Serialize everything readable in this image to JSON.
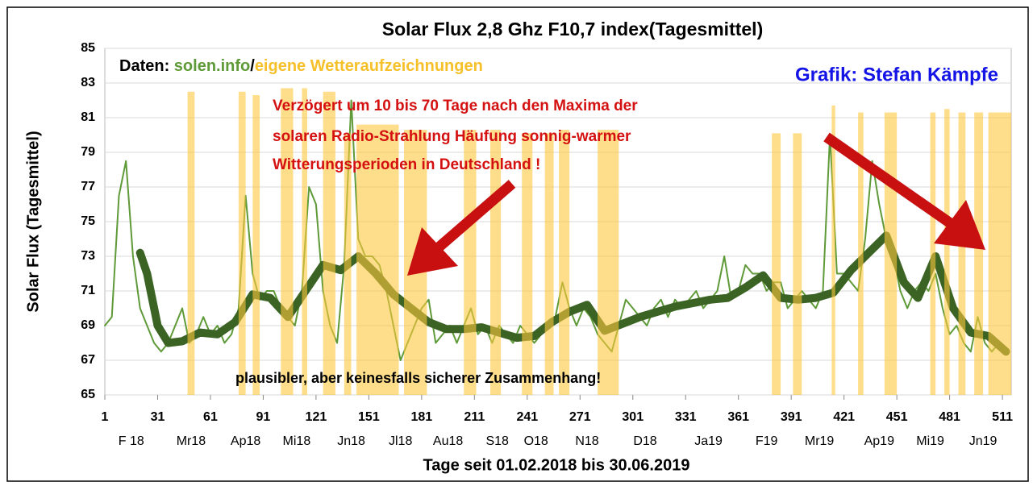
{
  "chart_data": {
    "type": "line",
    "title": "Solar Flux 2,8 Ghz F10,7 index(Tagesmittel)",
    "y_label": "Solar Flux (Tagesmittel)",
    "x_label": "Tage seit 01.02.2018 bis 30.06.2019",
    "source_prefix": "Daten: ",
    "source_site": "solen.info",
    "source_sep": "/",
    "source_own": "eigene Wetteraufzeichnungen",
    "credit": "Grafik: Stefan Kämpfe",
    "annotation_lines": [
      "Verzögert um 10 bis 70 Tage nach den Maxima der",
      "solaren Radio-Strahlung Häufung sonnig-warmer",
      "Witterungsperioden in Deutschland !"
    ],
    "footnote": "plausibler, aber keinesfalls sicherer Zusammenhang!",
    "xlim": [
      1,
      516
    ],
    "ylim": [
      65,
      85
    ],
    "xticks": [
      1,
      31,
      61,
      91,
      121,
      151,
      181,
      211,
      241,
      271,
      301,
      331,
      361,
      391,
      421,
      451,
      481,
      511
    ],
    "yticks": [
      65,
      67,
      69,
      71,
      73,
      75,
      77,
      79,
      81,
      83,
      85
    ],
    "grid": true,
    "month_labels": [
      {
        "value": 16,
        "label": "F 18"
      },
      {
        "value": 50,
        "label": "Mr18"
      },
      {
        "value": 81,
        "label": "Ap18"
      },
      {
        "value": 110,
        "label": "Mi18"
      },
      {
        "value": 141,
        "label": "Jn18"
      },
      {
        "value": 169,
        "label": "Jl18"
      },
      {
        "value": 196,
        "label": "Au18"
      },
      {
        "value": 224,
        "label": "S18"
      },
      {
        "value": 246,
        "label": "O18"
      },
      {
        "value": 275,
        "label": "N18"
      },
      {
        "value": 308,
        "label": "D18"
      },
      {
        "value": 344,
        "label": "Ja19"
      },
      {
        "value": 377,
        "label": "F19"
      },
      {
        "value": 407,
        "label": "Mr19"
      },
      {
        "value": 441,
        "label": "Ap19"
      },
      {
        "value": 470,
        "label": "Mi19"
      },
      {
        "value": 500,
        "label": "Jn19"
      }
    ],
    "bands_color": "#fdc83c",
    "bands": [
      {
        "x0": 48,
        "x1": 52,
        "top": 82.5
      },
      {
        "x0": 77,
        "x1": 81,
        "top": 82.5
      },
      {
        "x0": 85,
        "x1": 89,
        "top": 82.3
      },
      {
        "x0": 101,
        "x1": 108,
        "top": 82.7
      },
      {
        "x0": 113,
        "x1": 116,
        "top": 82.7
      },
      {
        "x0": 125,
        "x1": 132,
        "top": 82.5
      },
      {
        "x0": 137,
        "x1": 141,
        "top": 80.1
      },
      {
        "x0": 144,
        "x1": 168,
        "top": 80.6
      },
      {
        "x0": 171,
        "x1": 184,
        "top": 80.3
      },
      {
        "x0": 205,
        "x1": 212,
        "top": 80.3
      },
      {
        "x0": 220,
        "x1": 226,
        "top": 80.3
      },
      {
        "x0": 238,
        "x1": 244,
        "top": 80.1
      },
      {
        "x0": 251,
        "x1": 256,
        "top": 80.1
      },
      {
        "x0": 259,
        "x1": 265,
        "top": 80.3
      },
      {
        "x0": 281,
        "x1": 293,
        "top": 80.3
      },
      {
        "x0": 380,
        "x1": 385,
        "top": 80.1
      },
      {
        "x0": 392,
        "x1": 397,
        "top": 80.1
      },
      {
        "x0": 414,
        "x1": 416,
        "top": 81.7
      },
      {
        "x0": 429,
        "x1": 432,
        "top": 81.3
      },
      {
        "x0": 444,
        "x1": 451,
        "top": 81.3
      },
      {
        "x0": 470,
        "x1": 473,
        "top": 81.3
      },
      {
        "x0": 478,
        "x1": 481,
        "top": 81.5
      },
      {
        "x0": 486,
        "x1": 490,
        "top": 81.3
      },
      {
        "x0": 495,
        "x1": 500,
        "top": 81.3
      },
      {
        "x0": 503,
        "x1": 516,
        "top": 81.3
      }
    ],
    "series": [
      {
        "color": "#5f9a38",
        "width": 2,
        "x": [
          1,
          5,
          9,
          13,
          17,
          21,
          25,
          29,
          33,
          37,
          41,
          45,
          49,
          53,
          57,
          61,
          65,
          69,
          73,
          77,
          81,
          85,
          89,
          93,
          97,
          101,
          105,
          109,
          113,
          117,
          121,
          125,
          129,
          133,
          137,
          141,
          145,
          149,
          153,
          157,
          161,
          165,
          169,
          173,
          177,
          181,
          185,
          189,
          193,
          197,
          201,
          205,
          209,
          213,
          217,
          221,
          225,
          229,
          233,
          237,
          241,
          245,
          249,
          253,
          257,
          261,
          265,
          269,
          273,
          277,
          281,
          285,
          289,
          293,
          297,
          301,
          305,
          309,
          313,
          317,
          321,
          325,
          329,
          333,
          337,
          341,
          345,
          349,
          353,
          357,
          361,
          365,
          369,
          373,
          377,
          381,
          385,
          389,
          393,
          397,
          401,
          405,
          409,
          413,
          417,
          421,
          425,
          429,
          433,
          437,
          441,
          445,
          449,
          453,
          457,
          461,
          465,
          469,
          473,
          477,
          481,
          485,
          489,
          493,
          497,
          501,
          505,
          509,
          513
        ],
        "values": [
          69,
          69.5,
          76.5,
          78.5,
          73,
          70,
          69,
          68,
          67.5,
          68,
          69,
          70,
          68,
          68.5,
          69.5,
          68.5,
          69,
          68,
          68.5,
          70,
          76.5,
          72,
          70.5,
          71,
          71,
          70,
          69.5,
          69,
          71,
          77,
          76,
          71,
          69,
          68,
          72.5,
          82,
          74,
          73,
          73,
          72.5,
          71,
          69,
          67,
          68,
          69,
          70,
          70.5,
          68,
          68.5,
          69,
          68,
          69,
          70,
          68.5,
          69,
          68,
          69,
          68.5,
          68,
          69,
          68.5,
          68,
          68.5,
          69,
          69.5,
          71.5,
          70,
          69,
          70,
          69.5,
          68.5,
          68,
          67.5,
          69,
          70.5,
          70,
          69.5,
          69,
          70,
          70.5,
          69.5,
          70.5,
          70,
          70.5,
          71,
          70,
          70.5,
          71,
          73,
          70.5,
          71,
          72.5,
          72,
          72,
          71,
          71.5,
          71.5,
          70,
          70.5,
          71,
          70.5,
          70,
          71,
          80,
          72,
          72,
          71.5,
          71,
          74,
          78.5,
          76,
          74,
          73,
          71,
          70,
          71,
          71.5,
          71,
          72,
          70,
          68.5,
          69,
          68,
          67.5,
          69.5,
          68,
          67.5,
          68,
          67.5
        ]
      },
      {
        "color": "#3b6324",
        "width": 10,
        "x": [
          21,
          25,
          31,
          37,
          45,
          55,
          65,
          75,
          85,
          95,
          105,
          115,
          125,
          135,
          145,
          155,
          165,
          175,
          185,
          195,
          205,
          215,
          225,
          235,
          245,
          255,
          265,
          275,
          285,
          295,
          305,
          315,
          325,
          335,
          345,
          355,
          365,
          375,
          385,
          395,
          405,
          415,
          425,
          435,
          445,
          455,
          463,
          473,
          483,
          493,
          503,
          513
        ],
        "values": [
          73.2,
          72,
          69,
          68,
          68.1,
          68.6,
          68.5,
          69.2,
          70.8,
          70.6,
          69.5,
          71,
          72.5,
          72.2,
          73,
          72,
          70.8,
          70,
          69.2,
          68.8,
          68.8,
          68.9,
          68.6,
          68.3,
          68.4,
          69.2,
          69.8,
          70.2,
          68.7,
          69.1,
          69.5,
          69.8,
          70.1,
          70.3,
          70.5,
          70.6,
          71.2,
          71.9,
          70.6,
          70.5,
          70.6,
          70.9,
          72.2,
          73.2,
          74.2,
          71.5,
          70.6,
          73,
          70,
          68.6,
          68.4,
          67.5
        ]
      }
    ]
  }
}
